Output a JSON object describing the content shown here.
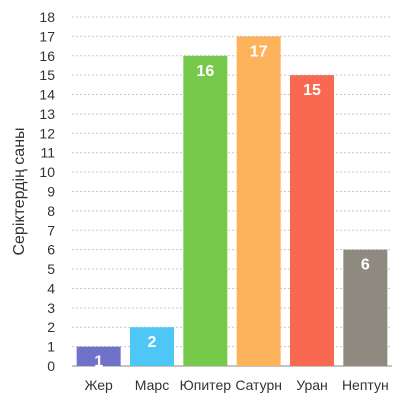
{
  "chart_data": {
    "type": "bar",
    "title": "",
    "xlabel": "",
    "ylabel": "Серіктердің саны",
    "categories": [
      "Жер",
      "Марс",
      "Юпитер",
      "Сатурн",
      "Уран",
      "Нептун"
    ],
    "values": [
      1,
      2,
      16,
      17,
      15,
      6
    ],
    "data_labels": [
      "1",
      "2",
      "16",
      "17",
      "15",
      "6"
    ],
    "ylim": [
      0,
      18
    ],
    "yticks": [
      0,
      1,
      2,
      3,
      4,
      5,
      6,
      7,
      8,
      9,
      10,
      11,
      12,
      13,
      14,
      15,
      16,
      17,
      18
    ],
    "grid": true,
    "legend": "none",
    "colors": [
      "#7072c9",
      "#4ec6f6",
      "#77c94c",
      "#fdb25c",
      "#f96851",
      "#8f8a80"
    ]
  }
}
